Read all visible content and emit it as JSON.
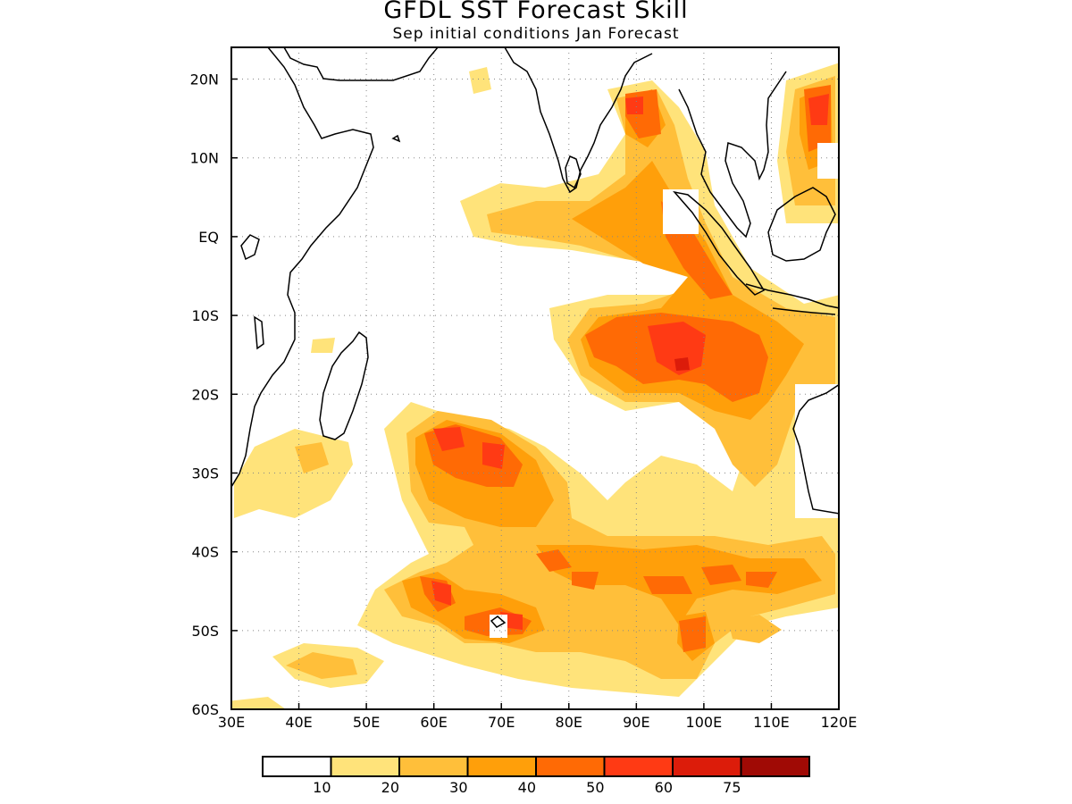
{
  "title": "GFDL SST Forecast Skill",
  "subtitle": "Sep initial conditions  Jan Forecast",
  "lon_ticks": [
    "30E",
    "40E",
    "50E",
    "60E",
    "70E",
    "80E",
    "90E",
    "100E",
    "110E",
    "120E"
  ],
  "lat_ticks": [
    "20N",
    "10N",
    "EQ",
    "10S",
    "20S",
    "30S",
    "40S",
    "50S",
    "60S"
  ],
  "colorbar": {
    "labels": [
      "10",
      "20",
      "30",
      "40",
      "50",
      "60",
      "75"
    ],
    "colors": [
      "#ffffff",
      "#ffe37a",
      "#ffbf3a",
      "#ff9f0a",
      "#ff6a05",
      "#ff3a14",
      "#dc1c0a",
      "#a00a05"
    ]
  },
  "colors": {
    "land_outline": "#000000",
    "grid": "#888888"
  }
}
